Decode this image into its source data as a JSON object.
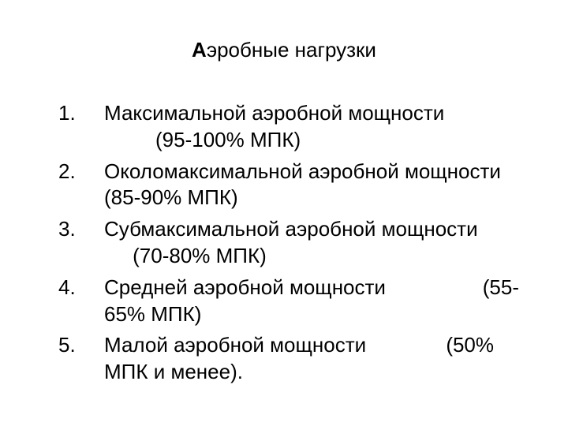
{
  "title": {
    "bold_part": "А",
    "rest": "эробные нагрузки"
  },
  "items": [
    {
      "text_before_gap": "Максимальной аэробной мощности",
      "gap": "         ",
      "text_after_gap": "(95-100% МПК)"
    },
    {
      "text_before_gap": "Околомаксимальной аэробной мощности (85-90% МПК)",
      "gap": "",
      "text_after_gap": ""
    },
    {
      "text_before_gap": "Субмаксимальной аэробной мощности",
      "gap": "     ",
      "text_after_gap": "(70-80% МПК)"
    },
    {
      "text_before_gap": "Средней аэробной мощности",
      "gap": "                 ",
      "text_after_gap": "(55-65% МПК)"
    },
    {
      "text_before_gap": "Малой аэробной мощности",
      "gap": "              ",
      "text_after_gap": "(50% МПК и менее)."
    }
  ],
  "colors": {
    "background": "#ffffff",
    "text": "#000000"
  },
  "typography": {
    "title_fontsize": 26,
    "item_fontsize": 26,
    "font_family": "Arial"
  }
}
